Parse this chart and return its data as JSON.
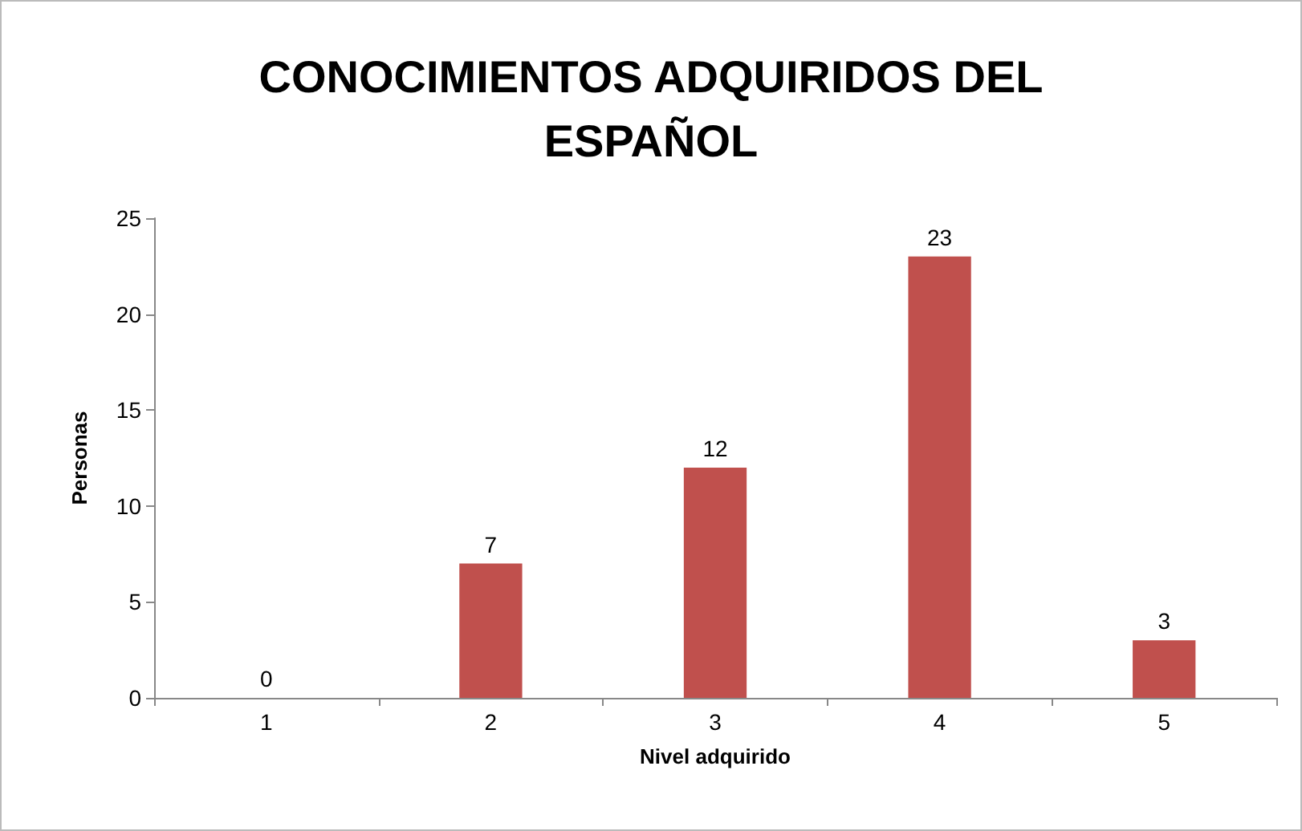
{
  "chart_data": {
    "type": "bar",
    "title": "CONOCIMIENTOS ADQUIRIDOS DEL\nESPAÑOL",
    "xlabel": "Nivel adquirido",
    "ylabel": "Personas",
    "categories": [
      "1",
      "2",
      "3",
      "4",
      "5"
    ],
    "values": [
      0,
      7,
      12,
      23,
      3
    ],
    "color": "#c0504d",
    "ylim": [
      0,
      25
    ],
    "yticks": [
      0,
      5,
      10,
      15,
      20,
      25
    ],
    "grid": false,
    "data_labels": true
  }
}
